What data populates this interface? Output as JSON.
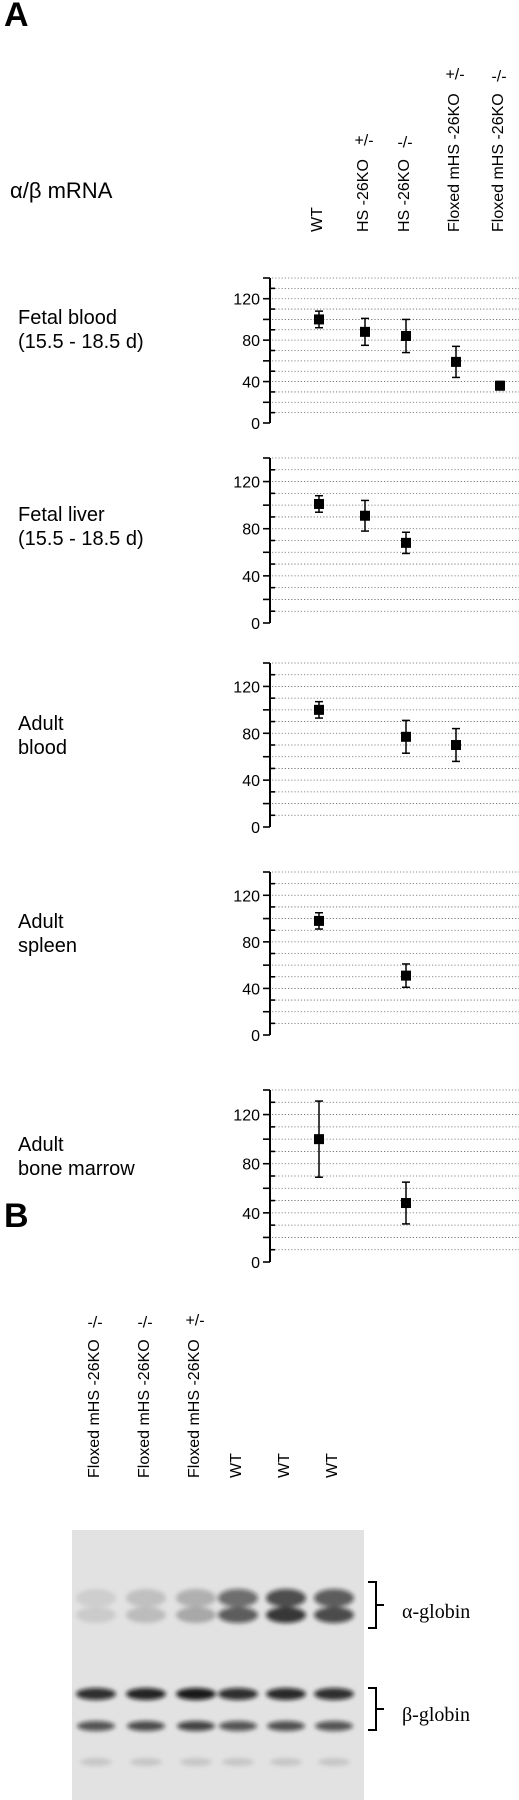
{
  "panel_a_label": "A",
  "panel_b_label": "B",
  "ratio_label": "α/β mRNA",
  "column_labels": [
    {
      "name": "WT",
      "genotype": ""
    },
    {
      "name": "HS -26KO",
      "genotype": "+/-"
    },
    {
      "name": "HS -26KO",
      "genotype": "-/-"
    },
    {
      "name": "Floxed mHS -26KO",
      "genotype": "+/-"
    },
    {
      "name": "Floxed mHS -26KO",
      "genotype": "-/-"
    }
  ],
  "chart_data": [
    {
      "type": "scatter",
      "label_lines": [
        "Fetal blood",
        "(15.5 - 18.5 d)"
      ],
      "categories": [
        "WT",
        "HS -26KO +/-",
        "HS -26KO -/-",
        "Floxed mHS -26KO +/-",
        "Floxed mHS -26KO -/-"
      ],
      "values": [
        100,
        88,
        84,
        59,
        36
      ],
      "errors": [
        8,
        13,
        16,
        15,
        4
      ],
      "ylim": [
        0,
        140
      ],
      "yticks": [
        0,
        40,
        80,
        120
      ]
    },
    {
      "type": "scatter",
      "label_lines": [
        "Fetal liver",
        "(15.5 - 18.5 d)"
      ],
      "categories": [
        "WT",
        "HS -26KO +/-",
        "HS -26KO -/-"
      ],
      "values": [
        101,
        91,
        68
      ],
      "errors": [
        7,
        13,
        9
      ],
      "ylim": [
        0,
        140
      ],
      "yticks": [
        0,
        40,
        80,
        120
      ]
    },
    {
      "type": "scatter",
      "label_lines": [
        "Adult",
        "blood"
      ],
      "categories": [
        "WT",
        "HS -26KO -/-",
        "Floxed mHS -26KO +/-"
      ],
      "values": [
        100,
        77,
        70
      ],
      "errors": [
        7,
        14,
        14
      ],
      "ylim": [
        0,
        140
      ],
      "yticks": [
        0,
        40,
        80,
        120
      ]
    },
    {
      "type": "scatter",
      "label_lines": [
        "Adult",
        "spleen"
      ],
      "categories": [
        "WT",
        "HS -26KO -/-"
      ],
      "values": [
        98,
        51
      ],
      "errors": [
        7,
        10
      ],
      "ylim": [
        0,
        140
      ],
      "yticks": [
        0,
        40,
        80,
        120
      ]
    },
    {
      "type": "scatter",
      "label_lines": [
        "Adult",
        "bone  marrow"
      ],
      "categories": [
        "WT",
        "HS -26KO -/-"
      ],
      "values": [
        100,
        48
      ],
      "errors": [
        31,
        17
      ],
      "ylim": [
        0,
        140
      ],
      "yticks": [
        0,
        40,
        80,
        120
      ]
    }
  ],
  "blot": {
    "lane_labels": [
      {
        "name": "Floxed mHS -26KO",
        "genotype": "-/-"
      },
      {
        "name": "Floxed mHS -26KO",
        "genotype": "-/-"
      },
      {
        "name": "Floxed mHS -26KO",
        "genotype": "+/-"
      },
      {
        "name": "WT",
        "genotype": ""
      },
      {
        "name": "WT",
        "genotype": ""
      },
      {
        "name": "WT",
        "genotype": ""
      }
    ],
    "alpha_label": "α-globin",
    "beta_label": "β-globin",
    "alpha_intensity": [
      0.12,
      0.2,
      0.3,
      0.75,
      0.95,
      0.85
    ],
    "beta_intensity": [
      0.85,
      0.9,
      0.95,
      0.85,
      0.88,
      0.85
    ]
  }
}
